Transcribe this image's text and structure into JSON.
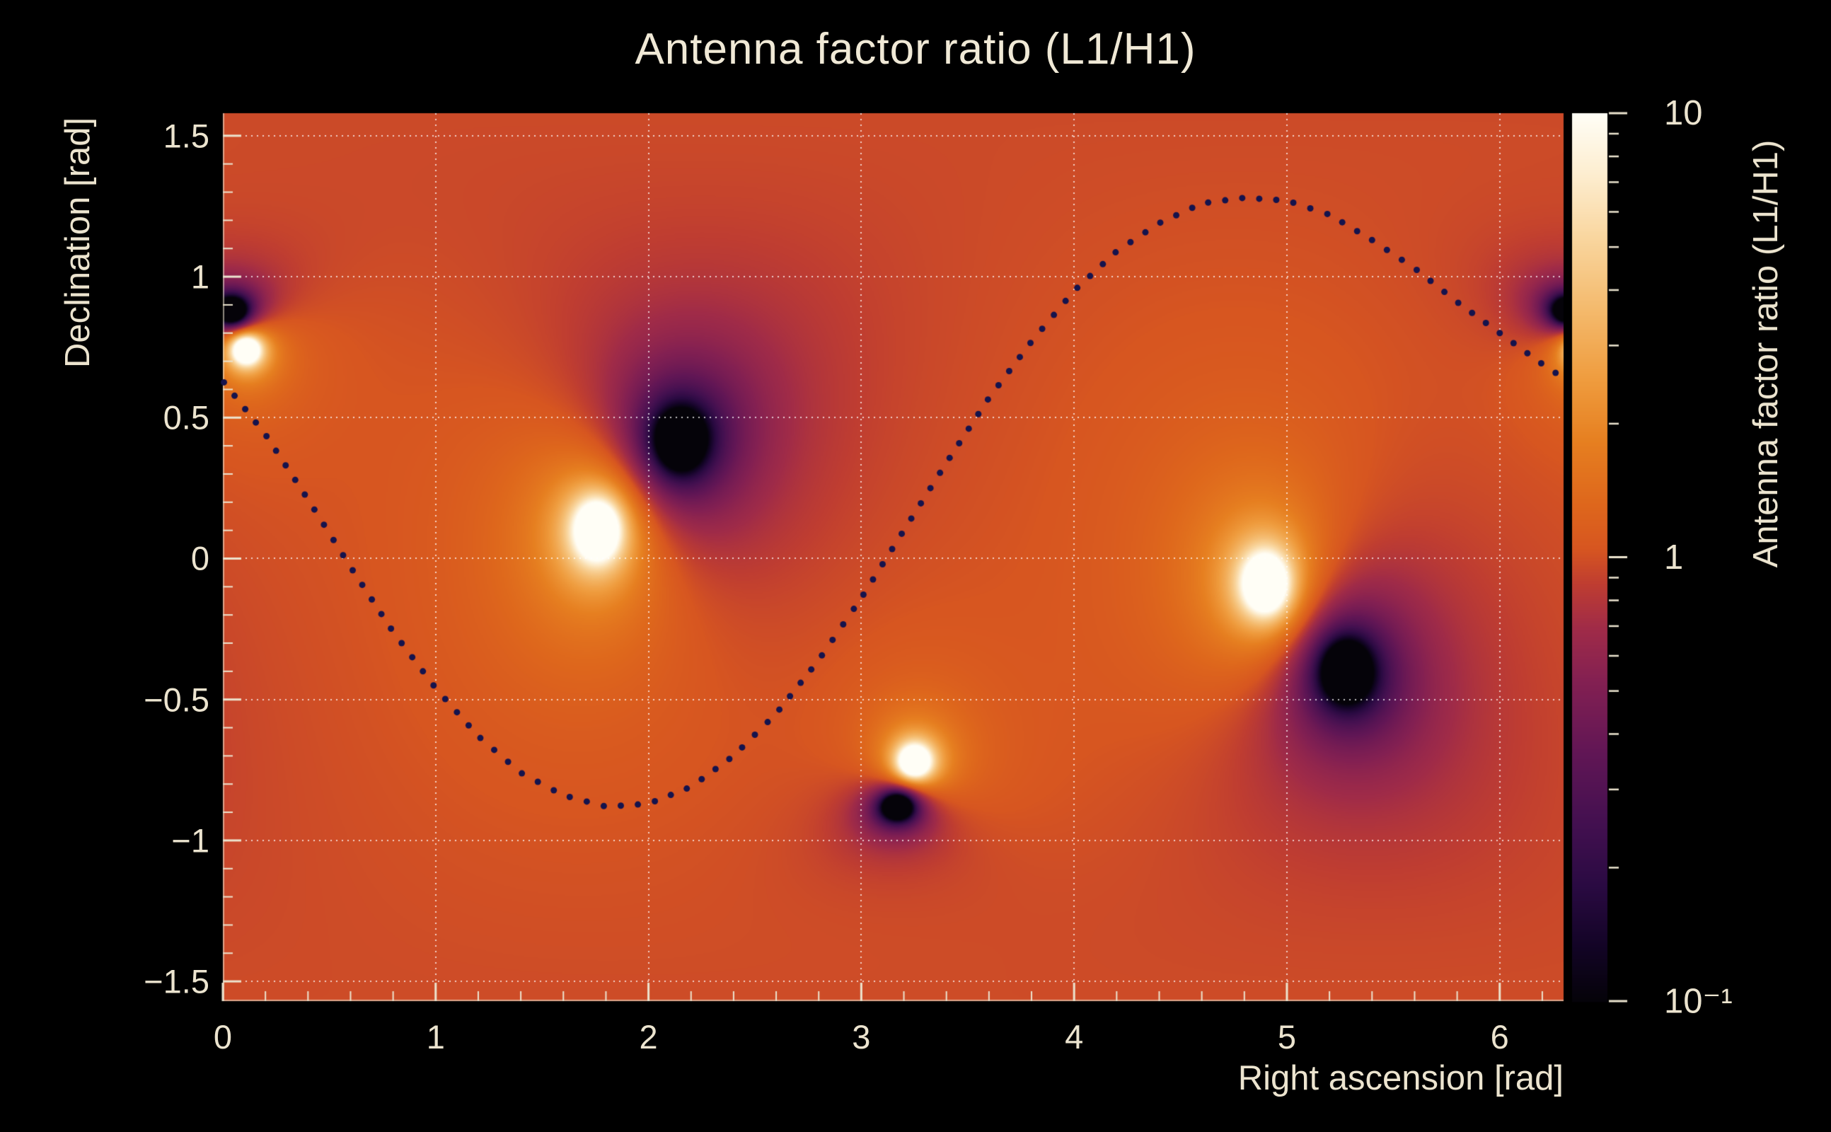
{
  "chart_data": {
    "type": "heatmap",
    "title": "Antenna factor ratio (L1/H1)",
    "xlabel": "Right ascension [rad]",
    "ylabel": "Declination [rad]",
    "zlabel": "Antenna factor ratio (L1/H1)",
    "x_range": [
      0,
      6.3
    ],
    "y_range": [
      -1.57,
      1.58
    ],
    "z_scale": "log10",
    "z_range": [
      0.1,
      10
    ],
    "background_ratio": 1.0,
    "x_ticks": [
      {
        "v": 0,
        "label": "0"
      },
      {
        "v": 1,
        "label": "1"
      },
      {
        "v": 2,
        "label": "2"
      },
      {
        "v": 3,
        "label": "3"
      },
      {
        "v": 4,
        "label": "4"
      },
      {
        "v": 5,
        "label": "5"
      },
      {
        "v": 6,
        "label": "6"
      }
    ],
    "y_ticks": [
      {
        "v": -1.5,
        "label": "−1.5"
      },
      {
        "v": -1.0,
        "label": "−1"
      },
      {
        "v": -0.5,
        "label": "−0.5"
      },
      {
        "v": 0,
        "label": "0"
      },
      {
        "v": 0.5,
        "label": "0.5"
      },
      {
        "v": 1.0,
        "label": "1"
      },
      {
        "v": 1.5,
        "label": "1.5"
      }
    ],
    "x_minor_step": 0.2,
    "y_minor_step": 0.1,
    "colorbar_ticks": [
      {
        "v": 10,
        "label": "10"
      },
      {
        "v": 1,
        "label": "1"
      },
      {
        "v": 0.1,
        "label": "10⁻¹"
      }
    ],
    "grid": {
      "show": true,
      "style": "dotted",
      "color": "rgba(255,255,255,0.75)"
    },
    "axis_color": "#ece4cf",
    "colormap": [
      [
        0.0,
        "#050309"
      ],
      [
        0.06,
        "#120425"
      ],
      [
        0.13,
        "#2a0a42"
      ],
      [
        0.2,
        "#431050"
      ],
      [
        0.28,
        "#611655"
      ],
      [
        0.36,
        "#832052"
      ],
      [
        0.42,
        "#a02b48"
      ],
      [
        0.47,
        "#bf3d31"
      ],
      [
        0.51,
        "#d75620"
      ],
      [
        0.56,
        "#de671c"
      ],
      [
        0.63,
        "#e67f20"
      ],
      [
        0.7,
        "#ef9c3e"
      ],
      [
        0.78,
        "#f4ba6d"
      ],
      [
        0.86,
        "#f9d69f"
      ],
      [
        0.93,
        "#fdedcf"
      ],
      [
        1.0,
        "#fffef6"
      ]
    ],
    "bright_spots": [
      {
        "ra": 1.76,
        "dec": 0.1,
        "peak_ratio": 10,
        "core_amp": 2.6,
        "core_sigma": 0.075,
        "halo_amp": 0.35,
        "halo_sigma": 0.4
      },
      {
        "ra": 4.9,
        "dec": -0.09,
        "peak_ratio": 10,
        "core_amp": 2.6,
        "core_sigma": 0.075,
        "halo_amp": 0.35,
        "halo_sigma": 0.4
      },
      {
        "ra": 0.11,
        "dec": 0.74,
        "peak_ratio": 10,
        "core_amp": 2.3,
        "core_sigma": 0.042,
        "halo_amp": 0.18,
        "halo_sigma": 0.2
      },
      {
        "ra": 3.25,
        "dec": -0.72,
        "peak_ratio": 10,
        "core_amp": 2.3,
        "core_sigma": 0.048,
        "halo_amp": 0.2,
        "halo_sigma": 0.22
      }
    ],
    "dark_spots": [
      {
        "ra": 2.15,
        "dec": 0.42,
        "peak_ratio": 0.1,
        "core_amp": -2.8,
        "core_sigma": 0.068,
        "halo_amp": -0.5,
        "halo_sigma": 0.35
      },
      {
        "ra": 5.28,
        "dec": -0.4,
        "peak_ratio": 0.1,
        "core_amp": -2.8,
        "core_sigma": 0.068,
        "halo_amp": -0.5,
        "halo_sigma": 0.35
      },
      {
        "ra": 3.17,
        "dec": -0.88,
        "peak_ratio": 0.1,
        "core_amp": -2.5,
        "core_sigma": 0.038,
        "halo_amp": -0.22,
        "halo_sigma": 0.16
      },
      {
        "ra": 0.04,
        "dec": 0.88,
        "peak_ratio": 0.1,
        "core_amp": -2.5,
        "core_sigma": 0.038,
        "halo_amp": -0.22,
        "halo_sigma": 0.16
      }
    ],
    "overlay_curve": {
      "style": "dotted",
      "color": "#15134d",
      "dot_radius": 4.5,
      "dot_spacing": 24,
      "points": [
        [
          0.0,
          0.63
        ],
        [
          0.2,
          0.44
        ],
        [
          0.4,
          0.21
        ],
        [
          0.6,
          -0.03
        ],
        [
          0.8,
          -0.26
        ],
        [
          1.0,
          -0.46
        ],
        [
          1.2,
          -0.63
        ],
        [
          1.4,
          -0.76
        ],
        [
          1.6,
          -0.84
        ],
        [
          1.8,
          -0.88
        ],
        [
          2.0,
          -0.87
        ],
        [
          2.2,
          -0.81
        ],
        [
          2.4,
          -0.7
        ],
        [
          2.6,
          -0.55
        ],
        [
          2.8,
          -0.36
        ],
        [
          3.0,
          -0.14
        ],
        [
          3.2,
          0.1
        ],
        [
          3.4,
          0.34
        ],
        [
          3.6,
          0.57
        ],
        [
          3.8,
          0.77
        ],
        [
          4.0,
          0.95
        ],
        [
          4.2,
          1.09
        ],
        [
          4.4,
          1.19
        ],
        [
          4.6,
          1.26
        ],
        [
          4.8,
          1.28
        ],
        [
          5.0,
          1.27
        ],
        [
          5.2,
          1.22
        ],
        [
          5.4,
          1.13
        ],
        [
          5.6,
          1.03
        ],
        [
          5.8,
          0.91
        ],
        [
          6.0,
          0.8
        ],
        [
          6.2,
          0.69
        ],
        [
          6.3,
          0.64
        ]
      ]
    }
  }
}
